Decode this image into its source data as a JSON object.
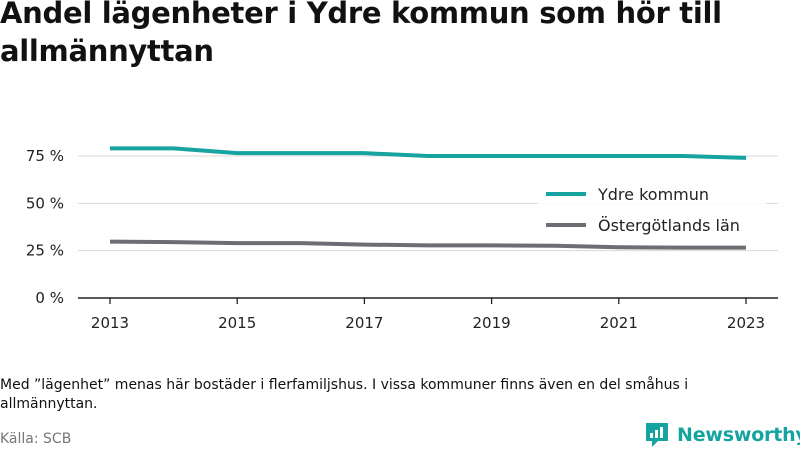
{
  "title": "Andel lägenheter i Ydre kommun som hör till allmännyttan",
  "note": "Med ”lägenhet” menas här bostäder i flerfamiljshus. I vissa kommuner finns även en del småhus i allmännyttan.",
  "source": "Källa: SCB",
  "logo_text": "Newsworthy",
  "chart_data": {
    "type": "line",
    "x": [
      2013,
      2014,
      2015,
      2016,
      2017,
      2018,
      2019,
      2020,
      2021,
      2022,
      2023
    ],
    "x_tick_labels": [
      "2013",
      "2015",
      "2017",
      "2019",
      "2021",
      "2023"
    ],
    "y_tick_labels": [
      "0 %",
      "25 %",
      "50 %",
      "75 %"
    ],
    "ylim": [
      0,
      80
    ],
    "grid": true,
    "legend_position": "right",
    "series": [
      {
        "name": "Ydre kommun",
        "color": "#17a3a0",
        "values": [
          79,
          79,
          76.5,
          76.5,
          76.5,
          75,
          75,
          75,
          75,
          75,
          74
        ]
      },
      {
        "name": "Östergötlands län",
        "color": "#6d6d73",
        "values": [
          29.8,
          29.5,
          29,
          29,
          28.2,
          27.8,
          27.8,
          27.6,
          26.8,
          26.6,
          26.6
        ]
      }
    ]
  }
}
